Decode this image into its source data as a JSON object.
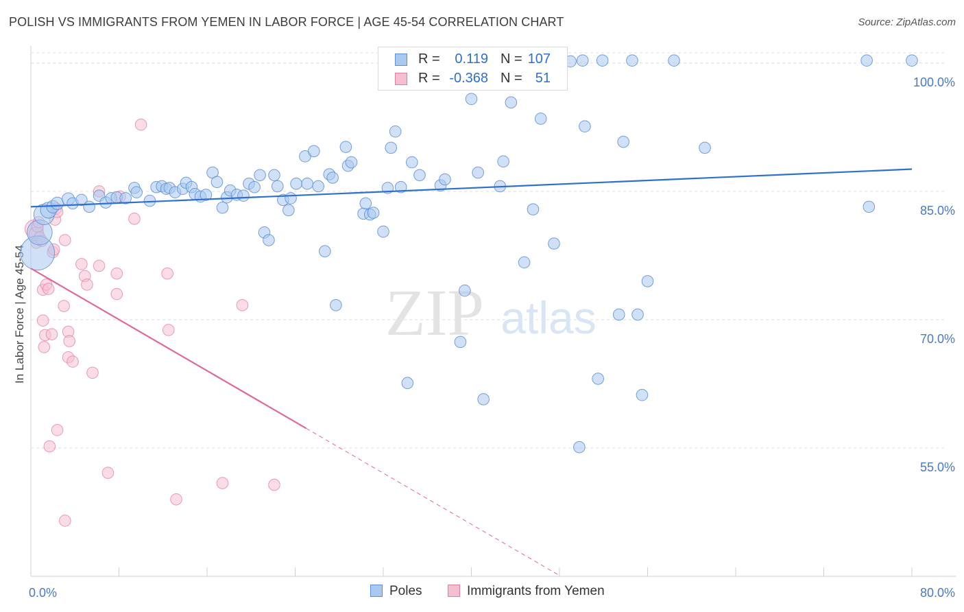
{
  "title": "POLISH VS IMMIGRANTS FROM YEMEN IN LABOR FORCE | AGE 45-54 CORRELATION CHART",
  "source": "Source: ZipAtlas.com",
  "watermark": {
    "zip": "ZIP",
    "atlas": "atlas"
  },
  "legend": {
    "rows": [
      {
        "r_label": "R =",
        "r_value": "0.119",
        "n_label": "N =",
        "n_value": "107"
      },
      {
        "r_label": "R =",
        "r_value": "-0.368",
        "n_label": "N =",
        "n_value": "51"
      }
    ]
  },
  "bottom_legend": {
    "poles": "Poles",
    "yemen": "Immigrants from Yemen"
  },
  "colors": {
    "poles_fill": "#aac8f0",
    "poles_stroke": "#5b8fd6",
    "poles_line": "#2f6fd0",
    "yemen_fill": "#f6bfd1",
    "yemen_stroke": "#e07ea0",
    "yemen_line": "#e0679a",
    "grid": "#dcdcdc",
    "tick_label": "#4a78c6"
  },
  "chart_data": {
    "type": "scatter",
    "title": "POLISH VS IMMIGRANTS FROM YEMEN IN LABOR FORCE | AGE 45-54 CORRELATION CHART",
    "xlabel": "",
    "ylabel": "In Labor Force | Age 45-54",
    "xlim": [
      0,
      80
    ],
    "ylim": [
      40,
      102
    ],
    "x_ticks": [
      {
        "value": 0,
        "label": "0.0%"
      },
      {
        "value": 80,
        "label": "80.0%"
      }
    ],
    "y_ticks": [
      {
        "value": 55,
        "label": "55.0%"
      },
      {
        "value": 70,
        "label": "70.0%"
      },
      {
        "value": 85,
        "label": "85.0%"
      },
      {
        "value": 100,
        "label": "100.0%"
      }
    ],
    "grid": true,
    "legend_position": "top-center",
    "series": [
      {
        "name": "Poles",
        "r": 0.119,
        "n": 107,
        "trend": {
          "x": [
            0,
            80
          ],
          "y": [
            83.2,
            87.6
          ],
          "style": "solid"
        },
        "points": [
          [
            0.6,
            77.8,
            3
          ],
          [
            0.8,
            80.2,
            2.2
          ],
          [
            1.2,
            82.3,
            1.8
          ],
          [
            1.6,
            82.8,
            1.4
          ],
          [
            2.0,
            83.2,
            1.1
          ],
          [
            2.4,
            83.6,
            1.1
          ],
          [
            3.4,
            84.1,
            1.1
          ],
          [
            3.8,
            83.6,
            1
          ],
          [
            4.6,
            84.0,
            1
          ],
          [
            5.3,
            83.2,
            1
          ],
          [
            6.2,
            84.5,
            1
          ],
          [
            6.8,
            83.7,
            1
          ],
          [
            7.3,
            84.2,
            1
          ],
          [
            7.8,
            84.3,
            1
          ],
          [
            8.6,
            84.2,
            1
          ],
          [
            9.4,
            85.4,
            1
          ],
          [
            9.6,
            84.9,
            1
          ],
          [
            10.8,
            83.9,
            1
          ],
          [
            11.4,
            85.5,
            1
          ],
          [
            11.9,
            85.6,
            1
          ],
          [
            12.3,
            85.3,
            1
          ],
          [
            12.6,
            85.4,
            1
          ],
          [
            13.1,
            84.9,
            1
          ],
          [
            13.8,
            85.3,
            1
          ],
          [
            14.1,
            86.0,
            1
          ],
          [
            14.6,
            85.5,
            1
          ],
          [
            14.9,
            84.7,
            1
          ],
          [
            15.4,
            84.4,
            1
          ],
          [
            15.9,
            84.6,
            1
          ],
          [
            16.5,
            87.2,
            1
          ],
          [
            16.9,
            86.1,
            1
          ],
          [
            17.4,
            83.1,
            1
          ],
          [
            17.8,
            84.3,
            1
          ],
          [
            18.1,
            85.1,
            1
          ],
          [
            18.7,
            84.6,
            1
          ],
          [
            19.3,
            84.5,
            1
          ],
          [
            19.8,
            85.9,
            1
          ],
          [
            20.3,
            85.5,
            1
          ],
          [
            20.8,
            86.9,
            1
          ],
          [
            21.2,
            80.2,
            1
          ],
          [
            21.6,
            79.3,
            1
          ],
          [
            22.1,
            86.9,
            1
          ],
          [
            22.4,
            85.6,
            1
          ],
          [
            22.9,
            84.0,
            1
          ],
          [
            23.4,
            82.8,
            1
          ],
          [
            23.6,
            84.2,
            1
          ],
          [
            24.1,
            85.9,
            1
          ],
          [
            24.9,
            89.1,
            1
          ],
          [
            25.1,
            85.9,
            1
          ],
          [
            25.7,
            89.7,
            1
          ],
          [
            26.1,
            85.6,
            1
          ],
          [
            26.7,
            78.0,
            1
          ],
          [
            27.1,
            87.0,
            1
          ],
          [
            27.4,
            86.6,
            1
          ],
          [
            27.7,
            71.7,
            1
          ],
          [
            28.6,
            90.2,
            1
          ],
          [
            28.8,
            88.0,
            1
          ],
          [
            29.1,
            88.4,
            1
          ],
          [
            30.2,
            82.4,
            1
          ],
          [
            30.4,
            83.6,
            1
          ],
          [
            30.8,
            82.3,
            1
          ],
          [
            31.1,
            82.5,
            1
          ],
          [
            32.0,
            80.3,
            1
          ],
          [
            32.4,
            85.4,
            1
          ],
          [
            32.7,
            90.1,
            1
          ],
          [
            33.1,
            92.0,
            1
          ],
          [
            33.6,
            85.5,
            1
          ],
          [
            34.2,
            62.6,
            1
          ],
          [
            34.6,
            88.4,
            1
          ],
          [
            35.3,
            86.9,
            1
          ],
          [
            35.9,
            99.9,
            1
          ],
          [
            37.2,
            85.7,
            1
          ],
          [
            37.6,
            86.4,
            1
          ],
          [
            39.0,
            67.4,
            1
          ],
          [
            39.4,
            73.4,
            1
          ],
          [
            40.0,
            95.8,
            1
          ],
          [
            40.6,
            87.2,
            1
          ],
          [
            41.1,
            60.7,
            1
          ],
          [
            42.6,
            85.6,
            1
          ],
          [
            42.9,
            88.5,
            1
          ],
          [
            43.6,
            95.4,
            1
          ],
          [
            43.9,
            99.3,
            1
          ],
          [
            44.8,
            76.7,
            1
          ],
          [
            45.6,
            82.9,
            1
          ],
          [
            46.3,
            93.5,
            1
          ],
          [
            47.5,
            78.9,
            1
          ],
          [
            49.0,
            100.2,
            1
          ],
          [
            49.8,
            55.1,
            1
          ],
          [
            50.1,
            100.3,
            1
          ],
          [
            50.3,
            92.6,
            1
          ],
          [
            51.5,
            63.1,
            1
          ],
          [
            51.9,
            100.3,
            1
          ],
          [
            53.4,
            70.6,
            1
          ],
          [
            53.8,
            90.8,
            1
          ],
          [
            54.6,
            100.3,
            1
          ],
          [
            55.1,
            70.6,
            1
          ],
          [
            55.5,
            61.2,
            1
          ],
          [
            56.0,
            74.5,
            1
          ],
          [
            58.4,
            100.3,
            1
          ],
          [
            61.2,
            90.1,
            1
          ],
          [
            75.9,
            100.3,
            1
          ],
          [
            76.1,
            83.2,
            1
          ],
          [
            80.0,
            100.3,
            1
          ]
        ]
      },
      {
        "name": "Immigrants from Yemen",
        "r": -0.368,
        "n": 51,
        "trend": {
          "x": [
            0,
            25,
            48
          ],
          "y": [
            76.0,
            57.3,
            40.1
          ],
          "style": "solid-then-dashed"
        },
        "points": [
          [
            0.3,
            80.6,
            1.6
          ],
          [
            0.5,
            80.0,
            1.3
          ],
          [
            0.5,
            79.0,
            1
          ],
          [
            0.6,
            80.9,
            1
          ],
          [
            0.7,
            81.4,
            1
          ],
          [
            0.8,
            79.6,
            1
          ],
          [
            1.0,
            79.2,
            1
          ],
          [
            1.1,
            69.9,
            1
          ],
          [
            1.1,
            73.5,
            1
          ],
          [
            1.2,
            66.8,
            1
          ],
          [
            1.3,
            68.2,
            1
          ],
          [
            1.4,
            74.1,
            1
          ],
          [
            1.6,
            73.6,
            1
          ],
          [
            1.7,
            55.2,
            1
          ],
          [
            1.9,
            68.3,
            1
          ],
          [
            2.0,
            77.9,
            1
          ],
          [
            2.1,
            78.2,
            1
          ],
          [
            2.2,
            81.7,
            1
          ],
          [
            2.3,
            83.0,
            1
          ],
          [
            2.4,
            82.6,
            1
          ],
          [
            2.4,
            57.1,
            1
          ],
          [
            3.0,
            71.6,
            1
          ],
          [
            3.1,
            46.5,
            1
          ],
          [
            3.1,
            79.3,
            1
          ],
          [
            3.4,
            65.6,
            1
          ],
          [
            3.4,
            68.6,
            1
          ],
          [
            3.5,
            67.5,
            1
          ],
          [
            3.8,
            65.1,
            1
          ],
          [
            4.6,
            76.5,
            1
          ],
          [
            4.9,
            75.1,
            1
          ],
          [
            5.1,
            74.1,
            1
          ],
          [
            5.6,
            63.8,
            1
          ],
          [
            6.2,
            85.0,
            1
          ],
          [
            6.2,
            76.3,
            1
          ],
          [
            7.0,
            52.1,
            1
          ],
          [
            7.8,
            73.0,
            1
          ],
          [
            7.8,
            75.4,
            1
          ],
          [
            8.1,
            84.4,
            1
          ],
          [
            9.4,
            81.8,
            1
          ],
          [
            10.0,
            92.8,
            1
          ],
          [
            12.4,
            75.4,
            1
          ],
          [
            12.5,
            68.8,
            1
          ],
          [
            13.2,
            49.0,
            1
          ],
          [
            17.4,
            50.9,
            1
          ],
          [
            19.2,
            71.7,
            1
          ],
          [
            22.1,
            50.7,
            1
          ]
        ]
      }
    ]
  }
}
